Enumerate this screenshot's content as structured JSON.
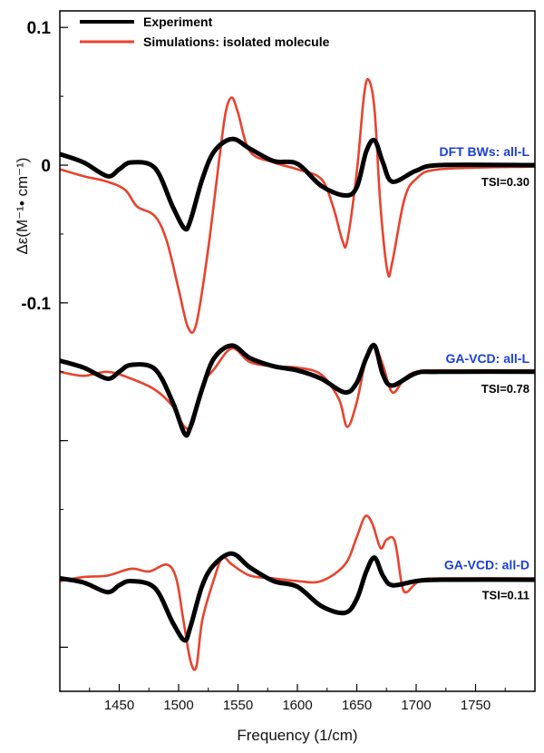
{
  "chart_data": {
    "type": "line",
    "xlabel": "Frequency (1/cm)",
    "ylabel": "Δε(M⁻¹• cm⁻¹)",
    "xlim": [
      1400,
      1800
    ],
    "x_ticks": [
      "1450",
      "1500",
      "1550",
      "1600",
      "1650",
      "1700",
      "1750"
    ],
    "y_ticks": [
      "0.1",
      "0",
      "-0.1"
    ],
    "legend": {
      "position": "top-left",
      "entries": [
        {
          "label": "Experiment",
          "color": "#000000"
        },
        {
          "label": "Simulations: isolated molecule",
          "color": "#e8432e"
        }
      ]
    },
    "panels": [
      {
        "label": "DFT BWs: all-L",
        "tsi": "TSI=0.30",
        "baseline": 0,
        "series": [
          {
            "name": "Experiment",
            "x": [
              1400,
              1420,
              1440,
              1450,
              1460,
              1480,
              1495,
              1505,
              1510,
              1520,
              1530,
              1545,
              1560,
              1580,
              1600,
              1620,
              1640,
              1650,
              1658,
              1665,
              1672,
              1680,
              1700,
              1720,
              1800
            ],
            "y": [
              0.008,
              0.002,
              -0.008,
              -0.003,
              0.002,
              -0.002,
              -0.03,
              -0.046,
              -0.04,
              -0.01,
              0.01,
              0.019,
              0.012,
              0.003,
              0.001,
              -0.015,
              -0.022,
              -0.016,
              0.01,
              0.018,
              0.002,
              -0.012,
              -0.004,
              0.0,
              0.0
            ]
          },
          {
            "name": "Simulations: isolated molecule",
            "x": [
              1400,
              1420,
              1440,
              1455,
              1465,
              1480,
              1490,
              1500,
              1508,
              1515,
              1525,
              1535,
              1540,
              1545,
              1550,
              1560,
              1580,
              1600,
              1620,
              1630,
              1638,
              1642,
              1650,
              1656,
              1660,
              1665,
              1670,
              1676,
              1680,
              1690,
              1700,
              1720,
              1800
            ],
            "y": [
              -0.003,
              -0.008,
              -0.012,
              -0.018,
              -0.03,
              -0.037,
              -0.055,
              -0.09,
              -0.118,
              -0.115,
              -0.06,
              0.01,
              0.04,
              0.049,
              0.038,
              0.01,
              0.002,
              -0.003,
              -0.01,
              -0.03,
              -0.055,
              -0.055,
              -0.005,
              0.05,
              0.062,
              0.04,
              -0.03,
              -0.078,
              -0.07,
              -0.025,
              -0.01,
              -0.003,
              -0.001
            ]
          }
        ]
      },
      {
        "label": "GA-VCD: all-L",
        "tsi": "TSI=0.78",
        "baseline": -0.15,
        "series": [
          {
            "name": "Experiment",
            "x": [
              1400,
              1420,
              1440,
              1450,
              1460,
              1480,
              1495,
              1505,
              1510,
              1520,
              1530,
              1545,
              1560,
              1580,
              1600,
              1620,
              1640,
              1650,
              1658,
              1665,
              1672,
              1680,
              1700,
              1720,
              1800
            ],
            "y": [
              -0.142,
              -0.147,
              -0.155,
              -0.15,
              -0.145,
              -0.148,
              -0.172,
              -0.195,
              -0.19,
              -0.162,
              -0.14,
              -0.131,
              -0.14,
              -0.146,
              -0.149,
              -0.155,
              -0.165,
              -0.158,
              -0.14,
              -0.131,
              -0.152,
              -0.16,
              -0.151,
              -0.15,
              -0.15
            ]
          },
          {
            "name": "Simulations: isolated molecule",
            "x": [
              1400,
              1420,
              1440,
              1460,
              1480,
              1495,
              1505,
              1512,
              1520,
              1530,
              1545,
              1560,
              1580,
              1600,
              1620,
              1635,
              1642,
              1650,
              1658,
              1665,
              1672,
              1680,
              1690,
              1700,
              1720,
              1800
            ],
            "y": [
              -0.15,
              -0.153,
              -0.15,
              -0.155,
              -0.163,
              -0.175,
              -0.19,
              -0.188,
              -0.16,
              -0.148,
              -0.133,
              -0.143,
              -0.146,
              -0.147,
              -0.152,
              -0.17,
              -0.19,
              -0.172,
              -0.14,
              -0.132,
              -0.145,
              -0.165,
              -0.155,
              -0.15,
              -0.149,
              -0.149
            ]
          }
        ]
      },
      {
        "label": "GA-VCD: all-D",
        "tsi": "TSI=0.11",
        "baseline": -0.3,
        "series": [
          {
            "name": "Experiment",
            "x": [
              1400,
              1420,
              1440,
              1450,
              1460,
              1480,
              1495,
              1505,
              1510,
              1520,
              1530,
              1545,
              1560,
              1580,
              1600,
              1620,
              1640,
              1650,
              1658,
              1665,
              1672,
              1680,
              1700,
              1720,
              1800
            ],
            "y": [
              -0.3,
              -0.303,
              -0.31,
              -0.305,
              -0.302,
              -0.307,
              -0.332,
              -0.345,
              -0.335,
              -0.305,
              -0.29,
              -0.282,
              -0.292,
              -0.302,
              -0.306,
              -0.32,
              -0.325,
              -0.315,
              -0.295,
              -0.285,
              -0.298,
              -0.305,
              -0.302,
              -0.301,
              -0.301
            ]
          },
          {
            "name": "Simulations: isolated molecule",
            "x": [
              1400,
              1420,
              1440,
              1460,
              1475,
              1490,
              1498,
              1504,
              1510,
              1515,
              1520,
              1530,
              1537,
              1545,
              1560,
              1580,
              1600,
              1620,
              1640,
              1650,
              1657,
              1663,
              1670,
              1675,
              1682,
              1688,
              1692,
              1698,
              1705,
              1720,
              1800
            ],
            "y": [
              -0.302,
              -0.299,
              -0.298,
              -0.293,
              -0.295,
              -0.29,
              -0.3,
              -0.33,
              -0.36,
              -0.364,
              -0.33,
              -0.3,
              -0.285,
              -0.29,
              -0.298,
              -0.3,
              -0.302,
              -0.302,
              -0.29,
              -0.27,
              -0.255,
              -0.26,
              -0.278,
              -0.272,
              -0.273,
              -0.305,
              -0.31,
              -0.305,
              -0.301,
              -0.3,
              -0.3
            ]
          }
        ]
      }
    ],
    "colors": {
      "experiment": "#000000",
      "simulation": "#e8432e",
      "panel_label": "#1a3fd6"
    },
    "grid": false
  }
}
